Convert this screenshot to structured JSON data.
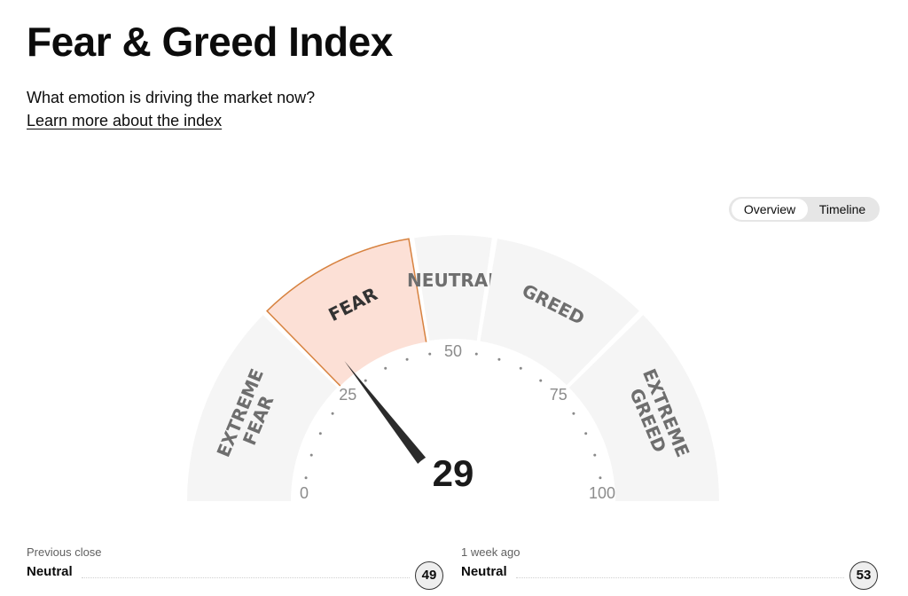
{
  "page": {
    "title": "Fear & Greed Index",
    "subtitle": "What emotion is driving the market now?",
    "learn_more": "Learn more about the index"
  },
  "toggle": {
    "options": [
      "Overview",
      "Timeline"
    ],
    "selected": "Overview"
  },
  "gauge": {
    "value": 29,
    "current_zone": "FEAR",
    "zones": [
      {
        "label": "EXTREME FEAR",
        "lines": [
          "EXTREME",
          "FEAR"
        ],
        "from": 0,
        "to": 25
      },
      {
        "label": "FEAR",
        "lines": [
          "FEAR"
        ],
        "from": 25,
        "to": 45
      },
      {
        "label": "NEUTRAL",
        "lines": [
          "NEUTRAL"
        ],
        "from": 45,
        "to": 55
      },
      {
        "label": "GREED",
        "lines": [
          "GREED"
        ],
        "from": 55,
        "to": 75
      },
      {
        "label": "EXTREME GREED",
        "lines": [
          "EXTREME",
          "GREED"
        ],
        "from": 75,
        "to": 100
      }
    ],
    "ticks": [
      "0",
      "25",
      "50",
      "75",
      "100"
    ],
    "colors": {
      "zone_bg": "#f5f5f5",
      "active_fill": "#fce0d6",
      "active_stroke": "#d7823f",
      "zone_text": "#6e6e6e",
      "active_text": "#333333",
      "needle": "#2b2b2b",
      "tick_text": "#8c8c8c"
    }
  },
  "history": {
    "previous_close": {
      "label": "Previous close",
      "status": "Neutral",
      "value": "49"
    },
    "one_week_ago": {
      "label": "1 week ago",
      "status": "Neutral",
      "value": "53"
    }
  }
}
